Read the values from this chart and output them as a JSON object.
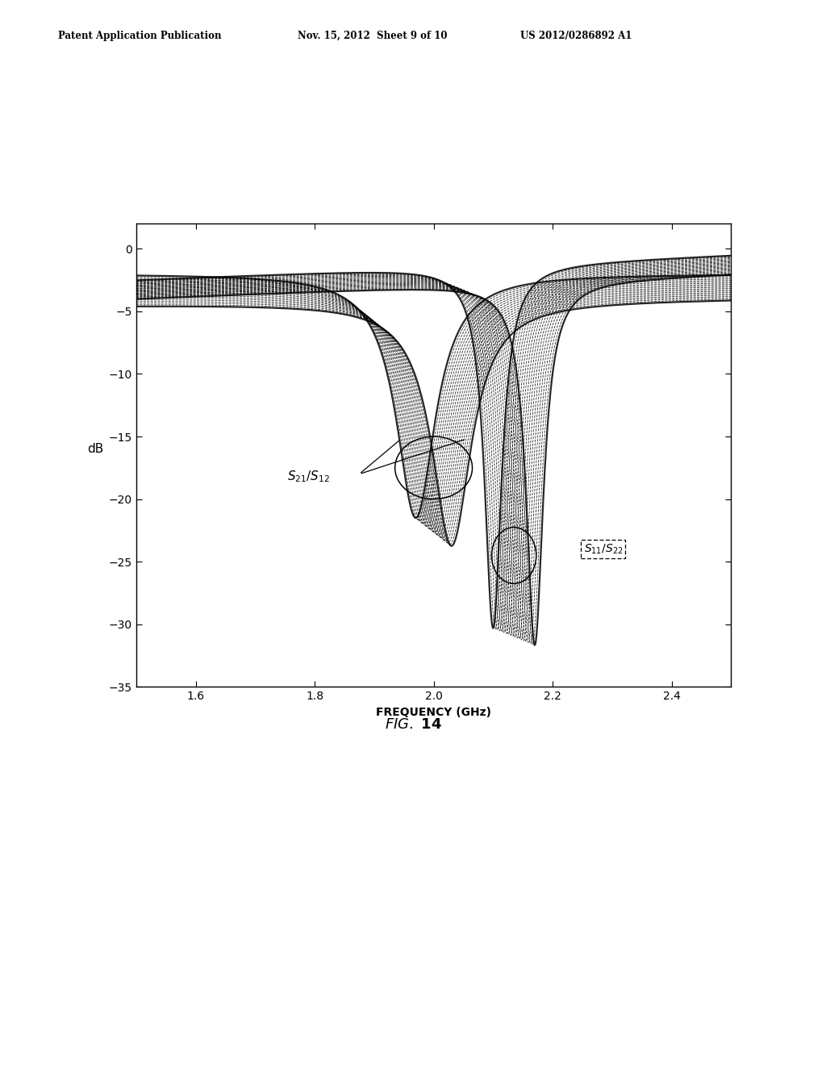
{
  "xlabel": "FREQUENCY (GHz)",
  "ylabel": "dB",
  "xlim": [
    1.5,
    2.5
  ],
  "ylim": [
    -35,
    2
  ],
  "xticks": [
    1.6,
    1.8,
    2.0,
    2.2,
    2.4
  ],
  "yticks": [
    0,
    -5,
    -10,
    -15,
    -20,
    -25,
    -30,
    -35
  ],
  "n_s21_curves": 20,
  "n_s11_curves": 20,
  "s21_notch_center_start": 1.97,
  "s21_notch_center_end": 2.03,
  "s11_notch_center_start": 2.1,
  "s11_notch_center_end": 2.17,
  "background_color": "#ffffff"
}
